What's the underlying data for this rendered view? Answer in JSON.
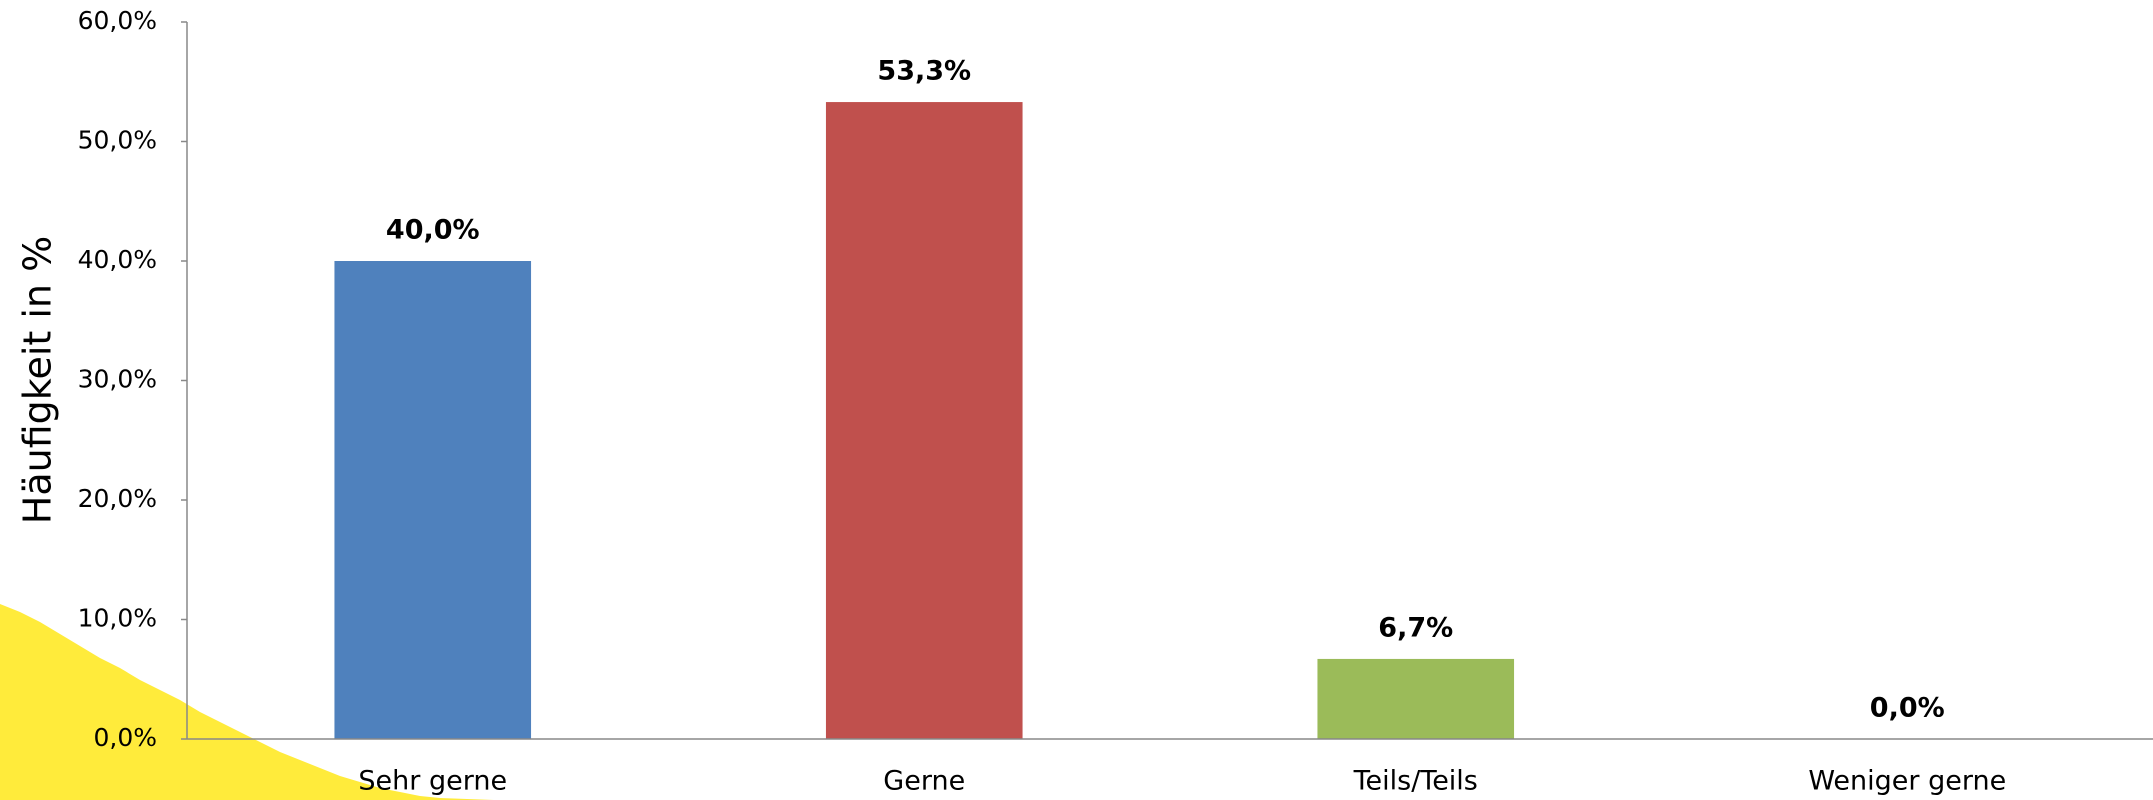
{
  "chart_data": {
    "type": "bar",
    "y_label": "Häufigkeit in %",
    "categories": [
      "Sehr gerne",
      "Gerne",
      "Teils/Teils",
      "Weniger gerne"
    ],
    "values": [
      40.0,
      53.3,
      6.7,
      0.0
    ],
    "value_labels": [
      "40,0%",
      "53,3%",
      "6,7%",
      "0,0%"
    ],
    "colors": [
      "#4f81bd",
      "#c0504d",
      "#9bbb59",
      "#8064a2"
    ],
    "ylim": [
      0,
      60
    ],
    "yticks": [
      {
        "value": 0,
        "label": "0,0%"
      },
      {
        "value": 10,
        "label": "10,0%"
      },
      {
        "value": 20,
        "label": "20,0%"
      },
      {
        "value": 30,
        "label": "30,0%"
      },
      {
        "value": 40,
        "label": "40,0%"
      },
      {
        "value": 50,
        "label": "50,0%"
      },
      {
        "value": 60,
        "label": "60,0%"
      }
    ],
    "grid": false
  }
}
